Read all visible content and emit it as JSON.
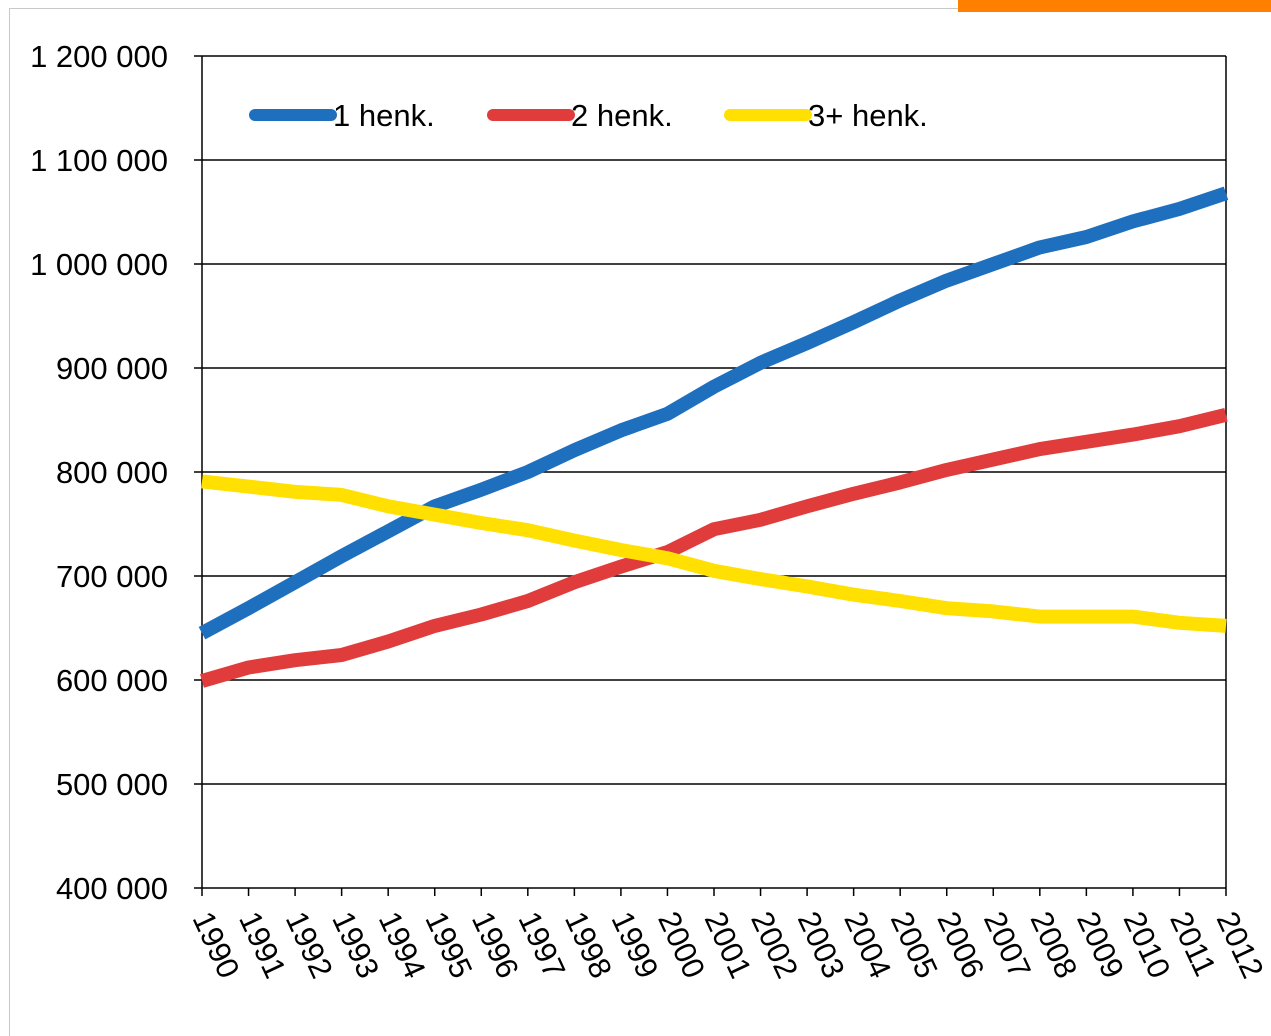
{
  "chart_data": {
    "type": "line",
    "categories": [
      "1990",
      "1991",
      "1992",
      "1993",
      "1994",
      "1995",
      "1996",
      "1997",
      "1998",
      "1999",
      "2000",
      "2001",
      "2002",
      "2003",
      "2004",
      "2005",
      "2006",
      "2007",
      "2008",
      "2009",
      "2010",
      "2011",
      "2012"
    ],
    "series": [
      {
        "name": "1 henk.",
        "color": "#1f6fbf",
        "values": [
          645000,
          669000,
          694000,
          719000,
          743000,
          767000,
          783000,
          800000,
          821000,
          840000,
          856000,
          882000,
          905000,
          924000,
          944000,
          965000,
          984000,
          1000000,
          1016000,
          1026000,
          1041000,
          1053000,
          1068000
        ]
      },
      {
        "name": "2 henk.",
        "color": "#e03c3c",
        "values": [
          599000,
          612000,
          619000,
          624000,
          637000,
          652000,
          663000,
          676000,
          694000,
          709000,
          723000,
          745000,
          754000,
          767000,
          779000,
          790000,
          802000,
          812000,
          822000,
          829000,
          836000,
          844000,
          855000
        ]
      },
      {
        "name": "3+ henk.",
        "color": "#ffe000",
        "values": [
          791000,
          786000,
          781000,
          778000,
          767000,
          759000,
          751000,
          744000,
          734000,
          725000,
          717000,
          705000,
          697000,
          690000,
          682000,
          676000,
          669000,
          666000,
          661000,
          661000,
          661000,
          655000,
          652000
        ]
      }
    ],
    "yticks": [
      "400 000",
      "500 000",
      "600 000",
      "700 000",
      "800 000",
      "900 000",
      "1 000 000",
      "1 100 000",
      "1 200 000"
    ],
    "ylim": [
      400000,
      1200000
    ],
    "grid": "horizontal",
    "legend_position": "top-left inside"
  },
  "decor": {
    "accent_color": "#ff7f00"
  }
}
